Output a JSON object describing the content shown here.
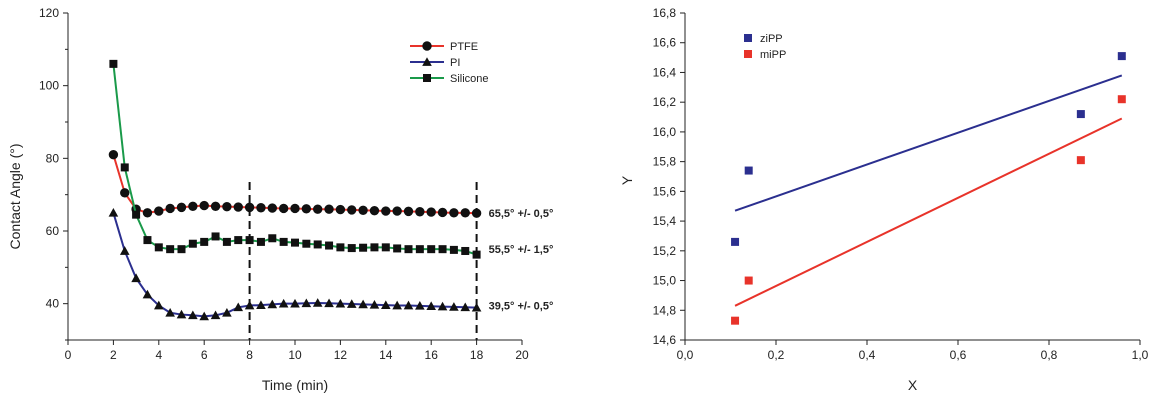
{
  "chart_data": [
    {
      "type": "line",
      "title": "",
      "xlabel": "Time (min)",
      "ylabel": "Contact Angle (°)",
      "xlim": [
        0,
        20
      ],
      "ylim": [
        30,
        120
      ],
      "xticks": [
        "0",
        "2",
        "4",
        "6",
        "8",
        "10",
        "12",
        "14",
        "16",
        "18",
        "20"
      ],
      "yticks": [
        "40",
        "60",
        "80",
        "100",
        "120"
      ],
      "legend_position": "top-right",
      "vlines": [
        8,
        18
      ],
      "series": [
        {
          "name": "PTFE",
          "color": "#e8332a",
          "marker": "circle",
          "x": [
            2,
            2.5,
            3,
            3.5,
            4,
            4.5,
            5,
            5.5,
            6,
            6.5,
            7,
            7.5,
            8,
            8.5,
            9,
            9.5,
            10,
            10.5,
            11,
            11.5,
            12,
            12.5,
            13,
            13.5,
            14,
            14.5,
            15,
            15.5,
            16,
            16.5,
            17,
            17.5,
            18
          ],
          "y": [
            81,
            70.5,
            66,
            65,
            65.5,
            66.2,
            66.5,
            66.8,
            67,
            66.8,
            66.7,
            66.6,
            66.5,
            66.4,
            66.3,
            66.2,
            66.2,
            66.1,
            66,
            66,
            65.9,
            65.8,
            65.7,
            65.6,
            65.5,
            65.5,
            65.4,
            65.3,
            65.2,
            65.1,
            65,
            65,
            64.9
          ]
        },
        {
          "name": "PI",
          "color": "#2b2f8f",
          "marker": "triangle",
          "x": [
            2,
            2.5,
            3,
            3.5,
            4,
            4.5,
            5,
            5.5,
            6,
            6.5,
            7,
            7.5,
            8,
            8.5,
            9,
            9.5,
            10,
            10.5,
            11,
            11.5,
            12,
            12.5,
            13,
            13.5,
            14,
            14.5,
            15,
            15.5,
            16,
            16.5,
            17,
            17.5,
            18
          ],
          "y": [
            65,
            54.5,
            47,
            42.5,
            39.5,
            37.5,
            37,
            36.8,
            36.5,
            36.8,
            37.5,
            39,
            39.5,
            39.6,
            39.8,
            40,
            40,
            40.1,
            40.2,
            40.1,
            40,
            39.9,
            39.8,
            39.7,
            39.6,
            39.5,
            39.5,
            39.4,
            39.3,
            39.2,
            39.1,
            39,
            38.9
          ]
        },
        {
          "name": "Silicone",
          "color": "#1a9a4a",
          "marker": "square",
          "x": [
            2,
            2.5,
            3,
            3.5,
            4,
            4.5,
            5,
            5.5,
            6,
            6.5,
            7,
            7.5,
            8,
            8.5,
            9,
            9.5,
            10,
            10.5,
            11,
            11.5,
            12,
            12.5,
            13,
            13.5,
            14,
            14.5,
            15,
            15.5,
            16,
            16.5,
            17,
            17.5,
            18
          ],
          "y": [
            106,
            77.5,
            64.5,
            57.5,
            55.5,
            55,
            55,
            56.5,
            57,
            58.5,
            57,
            57.5,
            57.5,
            57,
            58,
            57,
            56.8,
            56.5,
            56.3,
            56,
            55.5,
            55.3,
            55.4,
            55.5,
            55.5,
            55.2,
            55,
            55,
            55,
            55,
            54.8,
            54.5,
            53.5
          ]
        }
      ],
      "annotations": [
        {
          "text": "65,5° +/- 0,5°",
          "x": 18,
          "y": 65
        },
        {
          "text": "55,5° +/- 1,5°",
          "x": 18,
          "y": 55
        },
        {
          "text": "39,5° +/- 0,5°",
          "x": 18,
          "y": 39.5
        }
      ]
    },
    {
      "type": "scatter",
      "title": "",
      "xlabel": "X",
      "ylabel": "Y",
      "xlim": [
        0,
        1
      ],
      "ylim": [
        14.6,
        16.8
      ],
      "xticks": [
        "0,0",
        "0,2",
        "0,4",
        "0,6",
        "0,8",
        "1,0"
      ],
      "yticks": [
        "14,6",
        "14,8",
        "15,0",
        "15,2",
        "15,4",
        "15,6",
        "15,8",
        "16,0",
        "16,2",
        "16,4",
        "16,6",
        "16,8"
      ],
      "legend_position": "top-left",
      "series": [
        {
          "name": "ziPP",
          "color": "#2b2f8f",
          "x": [
            0.11,
            0.14,
            0.87,
            0.96
          ],
          "y": [
            15.26,
            15.74,
            16.12,
            16.51
          ],
          "trendline": {
            "x": [
              0.11,
              0.96
            ],
            "y": [
              15.47,
              16.38
            ]
          }
        },
        {
          "name": "miPP",
          "color": "#e8332a",
          "x": [
            0.11,
            0.14,
            0.87,
            0.96
          ],
          "y": [
            14.73,
            15.0,
            15.81,
            16.22
          ],
          "trendline": {
            "x": [
              0.11,
              0.96
            ],
            "y": [
              14.83,
              16.09
            ]
          }
        }
      ]
    }
  ]
}
